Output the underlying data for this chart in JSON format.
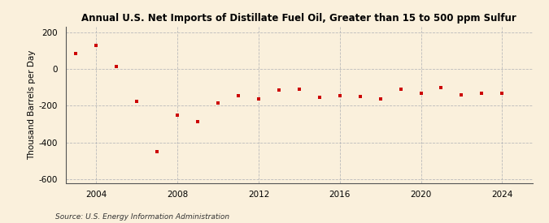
{
  "title": "Annual U.S. Net Imports of Distillate Fuel Oil, Greater than 15 to 500 ppm Sulfur",
  "ylabel": "Thousand Barrels per Day",
  "source": "Source: U.S. Energy Information Administration",
  "background_color": "#faf0dc",
  "marker_color": "#cc0000",
  "years": [
    2003,
    2004,
    2005,
    2006,
    2007,
    2008,
    2009,
    2010,
    2011,
    2012,
    2013,
    2014,
    2015,
    2016,
    2017,
    2018,
    2019,
    2020,
    2021,
    2022,
    2023,
    2024
  ],
  "values": [
    85,
    130,
    15,
    -175,
    -450,
    -250,
    -285,
    -185,
    -145,
    -165,
    -115,
    -110,
    -155,
    -145,
    -150,
    -165,
    -110,
    -130,
    -100,
    -140,
    -130,
    -130
  ],
  "ylim": [
    -620,
    230
  ],
  "yticks": [
    -600,
    -400,
    -200,
    0,
    200
  ],
  "xlim": [
    2002.5,
    2025.5
  ],
  "xticks": [
    2004,
    2008,
    2012,
    2016,
    2020,
    2024
  ],
  "grid_color": "#bbbbbb",
  "title_fontsize": 8.5,
  "axis_fontsize": 7.5,
  "source_fontsize": 6.5
}
